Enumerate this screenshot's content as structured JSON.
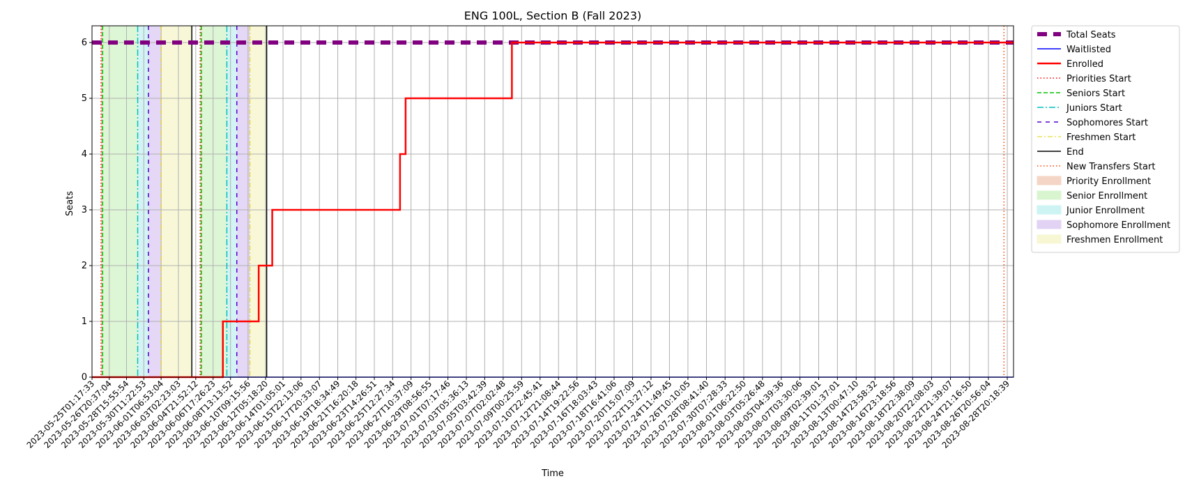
{
  "chart_data": {
    "type": "line",
    "title": "ENG 100L, Section B (Fall 2023)",
    "xlabel": "Time",
    "ylabel": "Seats",
    "ylim": [
      0,
      6.3
    ],
    "yticks": [
      0,
      1,
      2,
      3,
      4,
      5,
      6
    ],
    "xlim": [
      "2023-05-25T01:17:33",
      "2023-08-29T12:00:00"
    ],
    "grid": true,
    "legend_position": "outside-right",
    "xticks": [
      "2023-05-25T01:17:33",
      "2023-05-26T20:37:04",
      "2023-05-28T15:55:54",
      "2023-05-30T11:22:53",
      "2023-06-01T06:53:04",
      "2023-06-03T02:23:03",
      "2023-06-04T21:52:12",
      "2023-06-06T17:26:23",
      "2023-06-08T13:13:52",
      "2023-06-10T09:15:56",
      "2023-06-12T05:18:20",
      "2023-06-14T01:05:01",
      "2023-06-15T22:13:06",
      "2023-06-17T20:33:07",
      "2023-06-19T18:34:49",
      "2023-06-21T16:20:18",
      "2023-06-23T14:26:51",
      "2023-06-25T12:27:34",
      "2023-06-27T10:37:09",
      "2023-06-29T08:56:55",
      "2023-07-01T07:17:46",
      "2023-07-03T05:36:13",
      "2023-07-05T03:42:39",
      "2023-07-07T02:02:48",
      "2023-07-09T00:25:59",
      "2023-07-10T22:45:41",
      "2023-07-12T21:08:44",
      "2023-07-14T19:22:56",
      "2023-07-16T18:03:43",
      "2023-07-18T16:41:06",
      "2023-07-20T15:07:09",
      "2023-07-22T13:27:12",
      "2023-07-24T11:49:45",
      "2023-07-26T10:10:05",
      "2023-07-28T08:41:40",
      "2023-07-30T07:28:33",
      "2023-08-01T06:22:50",
      "2023-08-03T05:26:48",
      "2023-08-05T04:39:36",
      "2023-08-07T03:30:06",
      "2023-08-09T02:39:01",
      "2023-08-11T01:37:01",
      "2023-08-13T00:47:10",
      "2023-08-14T23:58:32",
      "2023-08-16T23:18:56",
      "2023-08-18T22:38:09",
      "2023-08-20T22:08:03",
      "2023-08-22T21:39:07",
      "2023-08-24T21:16:50",
      "2023-08-26T20:56:04",
      "2023-08-28T20:18:39"
    ],
    "series": [
      {
        "name": "Total Seats",
        "kind": "step",
        "color": "#800080",
        "style": "dashed-thick",
        "points": [
          [
            "2023-05-25T01:17:33",
            6
          ],
          [
            "2023-08-29T12:00:00",
            6
          ]
        ]
      },
      {
        "name": "Waitlisted",
        "kind": "step",
        "color": "#0000ff",
        "style": "solid",
        "points": [
          [
            "2023-05-25T01:17:33",
            0
          ],
          [
            "2023-08-29T12:00:00",
            0
          ]
        ]
      },
      {
        "name": "Enrolled",
        "kind": "step",
        "color": "#ff0000",
        "style": "solid-thick",
        "points": [
          [
            "2023-05-25T01:17:33",
            0
          ],
          [
            "2023-06-07T18:00:00",
            1
          ],
          [
            "2023-06-11T12:00:00",
            2
          ],
          [
            "2023-06-12T22:00:00",
            3
          ],
          [
            "2023-06-26T07:00:00",
            4
          ],
          [
            "2023-06-26T21:00:00",
            5
          ],
          [
            "2023-07-08T00:00:00",
            6
          ],
          [
            "2023-08-29T12:00:00",
            6
          ]
        ]
      }
    ],
    "vlines": [
      {
        "legend": "Priorities Start",
        "color": "#ff0000",
        "style": "dotted",
        "x": [
          "2023-05-26T00:00:00",
          "2023-06-05T09:00:00"
        ]
      },
      {
        "legend": "Seniors Start",
        "color": "#00c000",
        "style": "dashed",
        "x": [
          "2023-05-26T04:00:00",
          "2023-06-05T12:00:00"
        ]
      },
      {
        "legend": "Juniors Start",
        "color": "#00bfbf",
        "style": "dashdot",
        "x": [
          "2023-05-29T20:00:00",
          "2023-06-08T04:00:00"
        ]
      },
      {
        "legend": "Sophomores Start",
        "color": "#5000d0",
        "style": "loosedash",
        "x": [
          "2023-05-30T23:00:00",
          "2023-06-09T05:00:00"
        ]
      },
      {
        "legend": "Freshmen Start",
        "color": "#e0d000",
        "style": "dashdot-thin",
        "x": [
          "2023-06-01T07:00:00",
          "2023-06-10T14:00:00"
        ]
      },
      {
        "legend": "End",
        "color": "#000000",
        "style": "solid",
        "x": [
          "2023-06-04T12:00:00",
          "2023-06-12T08:00:00"
        ]
      },
      {
        "legend": "New Transfers Start",
        "color": "#ff4000",
        "style": "dotted",
        "x": [
          "2023-08-28T12:00:00"
        ]
      }
    ],
    "spans": [
      {
        "legend": "Priority Enrollment",
        "color": "#f5d5c5",
        "ranges": [
          [
            "2023-05-26T00:00:00",
            "2023-05-26T04:00:00"
          ],
          [
            "2023-06-05T09:00:00",
            "2023-06-05T12:00:00"
          ]
        ]
      },
      {
        "legend": "Senior Enrollment",
        "color": "#d9f5d0",
        "ranges": [
          [
            "2023-05-26T04:00:00",
            "2023-05-29T20:00:00"
          ],
          [
            "2023-06-05T12:00:00",
            "2023-06-08T04:00:00"
          ]
        ]
      },
      {
        "legend": "Junior Enrollment",
        "color": "#cdf3f3",
        "ranges": [
          [
            "2023-05-29T20:00:00",
            "2023-05-30T23:00:00"
          ],
          [
            "2023-06-08T04:00:00",
            "2023-06-09T05:00:00"
          ]
        ]
      },
      {
        "legend": "Sophomore Enrollment",
        "color": "#e2d3f5",
        "ranges": [
          [
            "2023-05-30T23:00:00",
            "2023-06-01T07:00:00"
          ],
          [
            "2023-06-09T05:00:00",
            "2023-06-10T14:00:00"
          ]
        ]
      },
      {
        "legend": "Freshmen Enrollment",
        "color": "#f7f7d4",
        "ranges": [
          [
            "2023-06-01T07:00:00",
            "2023-06-04T12:00:00"
          ],
          [
            "2023-06-10T14:00:00",
            "2023-06-12T08:00:00"
          ]
        ]
      }
    ],
    "legend": [
      {
        "label": "Total Seats",
        "kind": "line",
        "color": "#800080",
        "style": "dashed-thick"
      },
      {
        "label": "Waitlisted",
        "kind": "line",
        "color": "#0000ff",
        "style": "solid"
      },
      {
        "label": "Enrolled",
        "kind": "line",
        "color": "#ff0000",
        "style": "solid-thick"
      },
      {
        "label": "Priorities Start",
        "kind": "line",
        "color": "#ff0000",
        "style": "dotted"
      },
      {
        "label": "Seniors Start",
        "kind": "line",
        "color": "#00c000",
        "style": "dashed"
      },
      {
        "label": "Juniors Start",
        "kind": "line",
        "color": "#00bfbf",
        "style": "dashdot"
      },
      {
        "label": "Sophomores Start",
        "kind": "line",
        "color": "#5000d0",
        "style": "loosedash"
      },
      {
        "label": "Freshmen Start",
        "kind": "line",
        "color": "#e0d000",
        "style": "dashdot-thin"
      },
      {
        "label": "End",
        "kind": "line",
        "color": "#000000",
        "style": "solid"
      },
      {
        "label": "New Transfers Start",
        "kind": "line",
        "color": "#ff4000",
        "style": "dotted"
      },
      {
        "label": "Priority Enrollment",
        "kind": "patch",
        "color": "#f5d5c5"
      },
      {
        "label": "Senior Enrollment",
        "kind": "patch",
        "color": "#d9f5d0"
      },
      {
        "label": "Junior Enrollment",
        "kind": "patch",
        "color": "#cdf3f3"
      },
      {
        "label": "Sophomore Enrollment",
        "kind": "patch",
        "color": "#e2d3f5"
      },
      {
        "label": "Freshmen Enrollment",
        "kind": "patch",
        "color": "#f7f7d4"
      }
    ]
  }
}
